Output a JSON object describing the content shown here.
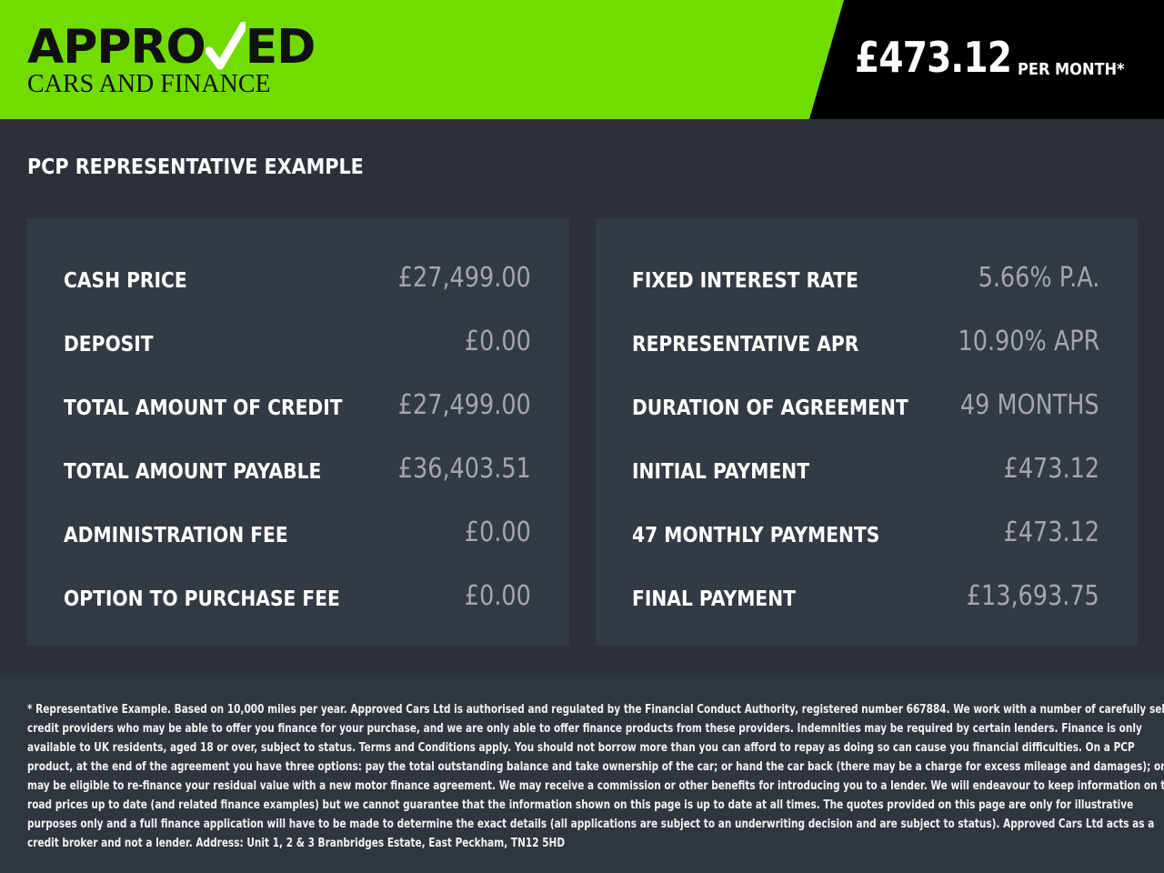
{
  "header": {
    "logo_top": "APPROVED",
    "logo_bottom": "CARS AND FINANCE",
    "price": "£473.12",
    "per_month": "PER MONTH*",
    "brand_color": "#72dc00"
  },
  "title": "PCP REPRESENTATIVE EXAMPLE",
  "left_rows": [
    {
      "label": "CASH PRICE",
      "value": "£27,499.00"
    },
    {
      "label": "DEPOSIT",
      "value": "£0.00"
    },
    {
      "label": "TOTAL AMOUNT OF CREDIT",
      "value": "£27,499.00"
    },
    {
      "label": "TOTAL AMOUNT PAYABLE",
      "value": "£36,403.51"
    },
    {
      "label": "ADMINISTRATION FEE",
      "value": "£0.00"
    },
    {
      "label": "OPTION TO PURCHASE FEE",
      "value": "£0.00"
    }
  ],
  "right_rows": [
    {
      "label": "FIXED INTEREST RATE",
      "value": "5.66% P.A."
    },
    {
      "label": "REPRESENTATIVE APR",
      "value": "10.90% APR"
    },
    {
      "label": "DURATION OF AGREEMENT",
      "value": "49 MONTHS"
    },
    {
      "label": "INITIAL PAYMENT",
      "value": "£473.12"
    },
    {
      "label": "47 MONTHLY PAYMENTS",
      "value": "£473.12"
    },
    {
      "label": "FINAL PAYMENT",
      "value": "£13,693.75"
    }
  ],
  "disclaimer": [
    "* Representative Example. Based on 10,000 miles per year. Approved Cars Ltd is authorised and regulated by the Financial Conduct Authority, registered number 667884. We work with a number of carefully selected",
    "credit providers who may be able to offer you finance for your purchase, and we are only able to offer finance products from these providers. Indemnities may be required by certain lenders. Finance is only",
    "available to UK residents, aged 18 or over, subject to status. Terms and Conditions apply. You should not borrow more than you can afford to repay as doing so can cause you financial difficulties. On a PCP",
    "product, at the end of the agreement you have three options: pay the total outstanding balance and take ownership of the car; or hand the car back (there may be a charge for excess mileage and damages); or you",
    "may be eligible to re-finance your residual value with a new motor finance agreement. We may receive a commission or other benefits for introducing you to a lender. We will endeavour to keep information on the",
    "road prices up to date (and related finance examples) but we cannot guarantee that the information shown on this page is up to date at all times. The quotes provided on this page are only for illustrative",
    "purposes only and a full finance application will have to be made to determine the exact details (all applications are subject to an underwriting decision and are subject to status). Approved Cars Ltd acts as a",
    "credit broker and not a lender. Address: Unit 1, 2 & 3 Branbridges Estate, East Peckham, TN12 5HD"
  ]
}
